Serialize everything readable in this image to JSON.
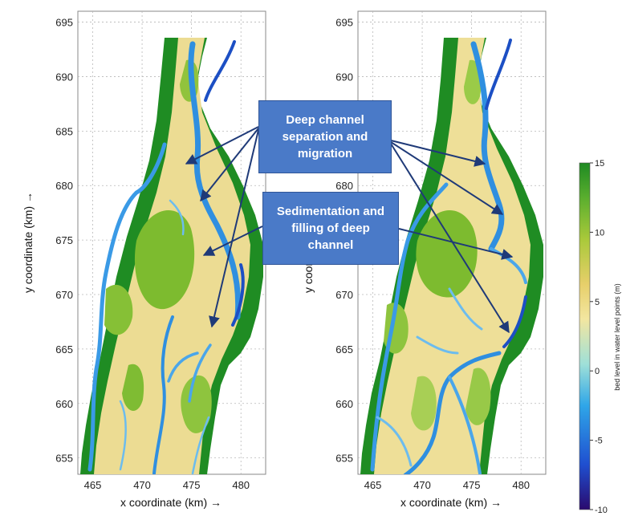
{
  "chart_data": [
    {
      "type": "heatmap",
      "panel": "left",
      "xlabel": "x coordinate (km) →",
      "ylabel": "y coordinate (km) →",
      "xlim": [
        463.5,
        482.5
      ],
      "ylim": [
        653.5,
        696.0
      ],
      "xticks": [
        "465",
        "470",
        "475",
        "480"
      ],
      "yticks": [
        "655",
        "660",
        "665",
        "670",
        "675",
        "680",
        "685",
        "690",
        "695"
      ],
      "grid": true
    },
    {
      "type": "heatmap",
      "panel": "right",
      "xlabel": "x coordinate (km) →",
      "ylabel": "y coordinate (km) →",
      "xlim": [
        463.5,
        482.5
      ],
      "ylim": [
        653.5,
        696.0
      ],
      "xticks": [
        "465",
        "470",
        "475",
        "480"
      ],
      "yticks": [
        "655",
        "660",
        "665",
        "670",
        "675",
        "680",
        "685",
        "690",
        "695"
      ],
      "grid": true
    }
  ],
  "colorbar": {
    "label": "bed level in water level points (m)",
    "ticks": [
      "15",
      "10",
      "5",
      "0",
      "-5",
      "-10"
    ],
    "range": [
      -10,
      15
    ],
    "colors": [
      "#2a0a6e",
      "#1f4fd0",
      "#2fa6e8",
      "#9fe0d8",
      "#f3e6a0",
      "#e7cf6a",
      "#a9c93a",
      "#5aae2e",
      "#1e8a22"
    ]
  },
  "annotations": {
    "callout1": "Deep channel separation and migration",
    "callout2": "Sedimentation and filling of deep channel"
  },
  "colors": {
    "bank_green": "#1f8c23",
    "mid_green": "#7dbb2f",
    "sand": "#efe1a0",
    "channel_blue": "#2f8fe0",
    "arrow": "#1f3a78",
    "callout_fill": "#4a7ac8"
  }
}
